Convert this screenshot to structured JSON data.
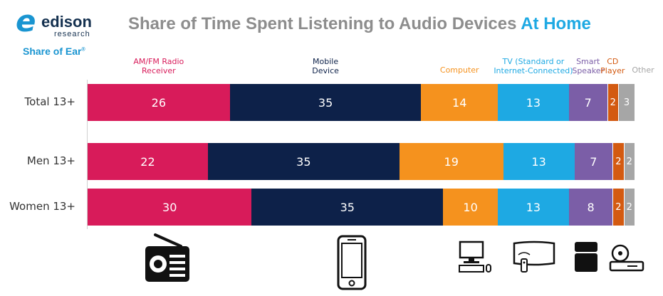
{
  "logo": {
    "word": "edison",
    "sub": "research",
    "tag": "Share of Ear",
    "tag_mark": "®"
  },
  "title": {
    "main": "Share of Time Spent Listening to Audio Devices ",
    "highlight": "At Home"
  },
  "chart_data": {
    "type": "bar",
    "orientation": "horizontal-stacked",
    "categories": [
      "Total 13+",
      "Men 13+",
      "Women 13+"
    ],
    "series": [
      {
        "name": "AM/FM Radio Receiver",
        "label_lines": [
          "AM/FM Radio",
          "Receiver"
        ],
        "color": "#d81b5a",
        "values": [
          26,
          22,
          30
        ]
      },
      {
        "name": "Mobile Device",
        "label_lines": [
          "Mobile",
          "Device"
        ],
        "color": "#0d2149",
        "values": [
          35,
          35,
          35
        ]
      },
      {
        "name": "Computer",
        "label_lines": [
          "Computer"
        ],
        "color": "#f5921e",
        "values": [
          14,
          19,
          10
        ]
      },
      {
        "name": "TV (Standard or Internet-Connected)",
        "label_lines": [
          "TV (Standard or",
          "Internet-Connected)"
        ],
        "color": "#1ea9e3",
        "values": [
          13,
          13,
          13
        ]
      },
      {
        "name": "Smart Speaker",
        "label_lines": [
          "Smart",
          "Speaker"
        ],
        "color": "#7b5ea7",
        "values": [
          7,
          7,
          8
        ]
      },
      {
        "name": "CD Player",
        "label_lines": [
          "CD",
          "Player"
        ],
        "color": "#d35a11",
        "values": [
          2,
          2,
          2
        ]
      },
      {
        "name": "Other",
        "label_lines": [
          "Other"
        ],
        "color": "#a6a6a6",
        "values": [
          3,
          2,
          2
        ]
      }
    ]
  },
  "icons": [
    "radio-icon",
    "mobile-phone-icon",
    "computer-icon",
    "tv-icon",
    "smart-speaker-icon",
    "cd-player-icon"
  ]
}
